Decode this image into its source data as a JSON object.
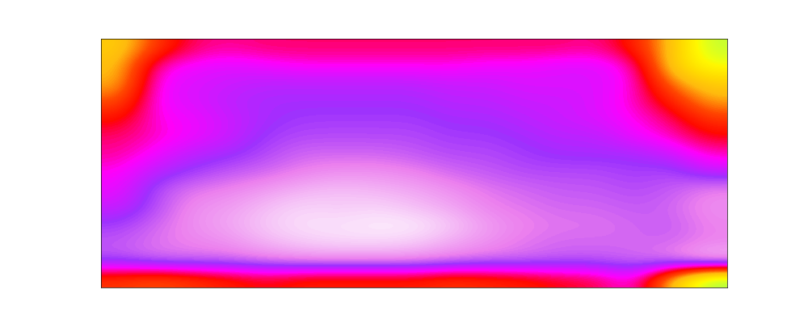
{
  "chart_data": {
    "type": "heatmap",
    "color": "gist_ncar",
    "tick_labels": false,
    "zlim": [
      0,
      1
    ],
    "cells": [
      [
        0.6,
        0.7,
        0.76,
        0.77,
        0.76,
        0.76,
        0.76,
        0.76,
        0.76,
        0.76,
        0.76,
        0.76,
        0.76,
        0.77,
        0.72,
        0.62,
        0.48
      ],
      [
        0.62,
        0.78,
        0.8,
        0.81,
        0.8,
        0.79,
        0.79,
        0.79,
        0.79,
        0.79,
        0.8,
        0.8,
        0.81,
        0.81,
        0.78,
        0.6,
        0.52
      ],
      [
        0.63,
        0.8,
        0.81,
        0.82,
        0.83,
        0.83,
        0.83,
        0.83,
        0.83,
        0.82,
        0.82,
        0.81,
        0.81,
        0.81,
        0.79,
        0.66,
        0.6
      ],
      [
        0.68,
        0.8,
        0.81,
        0.83,
        0.84,
        0.84,
        0.84,
        0.84,
        0.84,
        0.83,
        0.83,
        0.82,
        0.82,
        0.81,
        0.78,
        0.72,
        0.64
      ],
      [
        0.73,
        0.79,
        0.8,
        0.82,
        0.84,
        0.85,
        0.85,
        0.85,
        0.85,
        0.84,
        0.84,
        0.83,
        0.82,
        0.81,
        0.79,
        0.76,
        0.7
      ],
      [
        0.76,
        0.78,
        0.8,
        0.82,
        0.85,
        0.86,
        0.86,
        0.86,
        0.86,
        0.85,
        0.85,
        0.84,
        0.83,
        0.83,
        0.8,
        0.78,
        0.74
      ],
      [
        0.77,
        0.8,
        0.83,
        0.84,
        0.86,
        0.88,
        0.88,
        0.88,
        0.87,
        0.86,
        0.86,
        0.85,
        0.84,
        0.84,
        0.84,
        0.82,
        0.78
      ],
      [
        0.79,
        0.83,
        0.85,
        0.87,
        0.88,
        0.9,
        0.91,
        0.91,
        0.9,
        0.88,
        0.87,
        0.86,
        0.86,
        0.86,
        0.85,
        0.86,
        0.82
      ],
      [
        0.8,
        0.86,
        0.89,
        0.9,
        0.92,
        0.94,
        0.95,
        0.94,
        0.93,
        0.91,
        0.89,
        0.88,
        0.87,
        0.87,
        0.86,
        0.87,
        0.9
      ],
      [
        0.82,
        0.86,
        0.91,
        0.92,
        0.95,
        0.97,
        0.96,
        0.97,
        0.95,
        0.93,
        0.9,
        0.89,
        0.88,
        0.88,
        0.87,
        0.88,
        0.91
      ],
      [
        0.85,
        0.88,
        0.91,
        0.93,
        0.96,
        0.98,
        0.98,
        0.99,
        0.99,
        0.96,
        0.92,
        0.9,
        0.89,
        0.89,
        0.88,
        0.87,
        0.9
      ],
      [
        0.87,
        0.89,
        0.9,
        0.91,
        0.94,
        0.96,
        0.97,
        0.97,
        0.96,
        0.93,
        0.91,
        0.89,
        0.88,
        0.88,
        0.88,
        0.88,
        0.9
      ],
      [
        0.86,
        0.88,
        0.88,
        0.88,
        0.89,
        0.9,
        0.9,
        0.9,
        0.9,
        0.89,
        0.88,
        0.88,
        0.87,
        0.87,
        0.88,
        0.9,
        0.95
      ],
      [
        0.7,
        0.68,
        0.7,
        0.72,
        0.74,
        0.72,
        0.72,
        0.72,
        0.72,
        0.7,
        0.71,
        0.72,
        0.74,
        0.75,
        0.8,
        0.62,
        0.45
      ]
    ]
  }
}
